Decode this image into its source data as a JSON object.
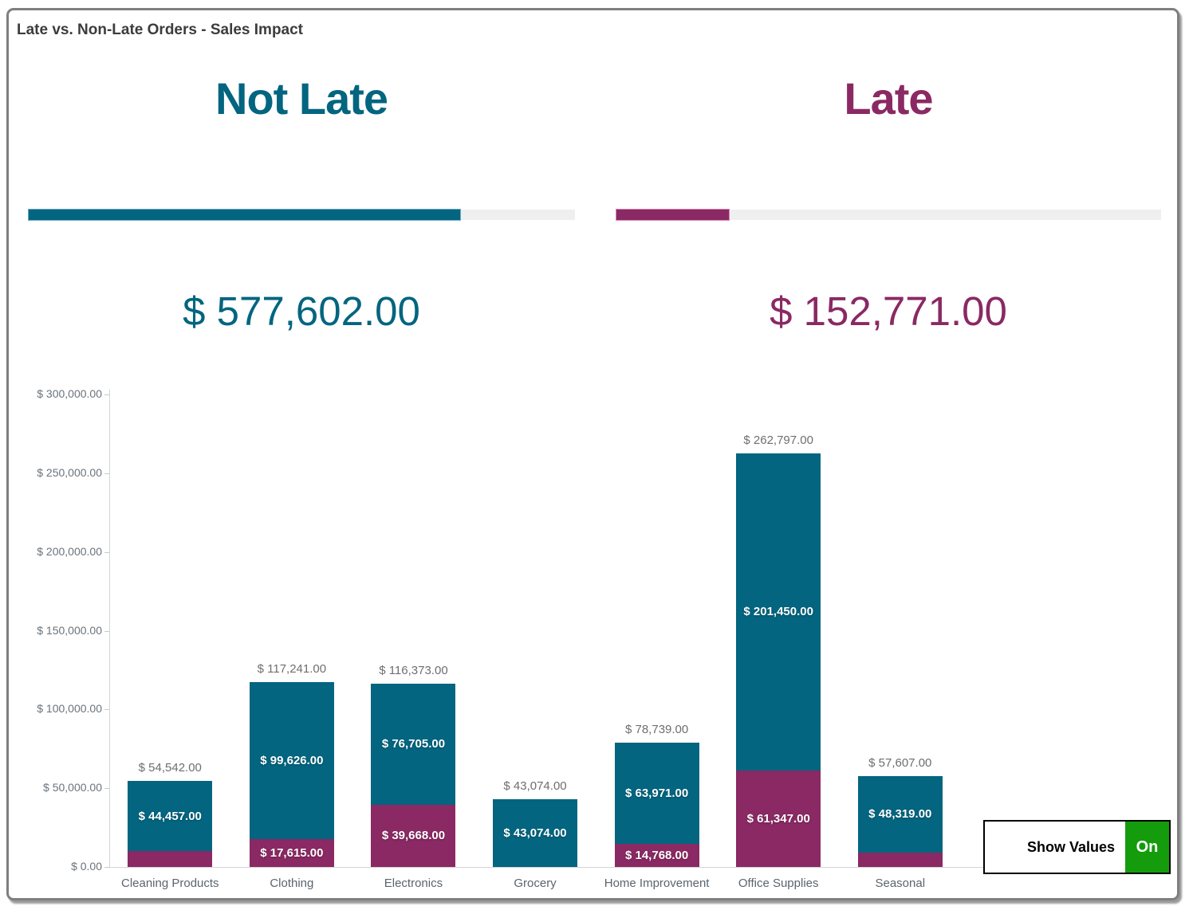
{
  "title": "Late vs. Non-Late Orders - Sales Impact",
  "kpis": [
    {
      "id": "not_late",
      "label": "Not Late",
      "value": "$ 577,602.00",
      "fill_pct": 79.1,
      "color": "#03657F",
      "fill_border": "#6FA8C4"
    },
    {
      "id": "late",
      "label": "Late",
      "value": "$ 152,771.00",
      "fill_pct": 20.9,
      "color": "#8A2963",
      "fill_border": "#D983B4"
    }
  ],
  "toggle": {
    "label": "Show Values",
    "state": "On",
    "on_color": "#149C0D"
  },
  "colors": {
    "teal": "#03657F",
    "magenta": "#8A2963",
    "track": "#EFEFEF",
    "axis": "#D5D5D5",
    "title_text": "#3C3C3C",
    "tick_text": "#6A737B",
    "total_text": "#6E6E6E",
    "category_text": "#5A646E"
  },
  "chart_data": {
    "type": "bar",
    "stacked": true,
    "title": "",
    "xlabel": "",
    "ylabel": "",
    "ylim": [
      0,
      300000
    ],
    "ytick_step": 50000,
    "y_ticks": [
      "$ 300,000.00",
      "$ 250,000.00",
      "$ 200,000.00",
      "$ 150,000.00",
      "$ 100,000.00",
      "$ 50,000.00",
      "$ 0.00"
    ],
    "grid": false,
    "legend_position": "none",
    "currency_prefix": "$ ",
    "categories": [
      "Cleaning Products",
      "Clothing",
      "Electronics",
      "Grocery",
      "Home Improvement",
      "Office Supplies",
      "Seasonal"
    ],
    "series": [
      {
        "name": "Late",
        "color": "#8A2963",
        "values": [
          10085,
          17615,
          39668,
          0,
          14768,
          61347,
          9288
        ],
        "shown_labels": [
          null,
          "$ 17,615.00",
          "$ 39,668.00",
          null,
          "$ 14,768.00",
          "$ 61,347.00",
          null
        ]
      },
      {
        "name": "Not Late",
        "color": "#03657F",
        "values": [
          44457,
          99626,
          76705,
          43074,
          63971,
          201450,
          48319
        ],
        "shown_labels": [
          "$ 44,457.00",
          "$ 99,626.00",
          "$ 76,705.00",
          "$ 43,074.00",
          "$ 63,971.00",
          "$ 201,450.00",
          "$ 48,319.00"
        ]
      }
    ],
    "totals": [
      54542,
      117241,
      116373,
      43074,
      78739,
      262797,
      57607
    ],
    "totals_formatted": [
      "$ 54,542.00",
      "$ 117,241.00",
      "$ 116,373.00",
      "$ 43,074.00",
      "$ 78,739.00",
      "$ 262,797.00",
      "$ 57,607.00"
    ]
  }
}
